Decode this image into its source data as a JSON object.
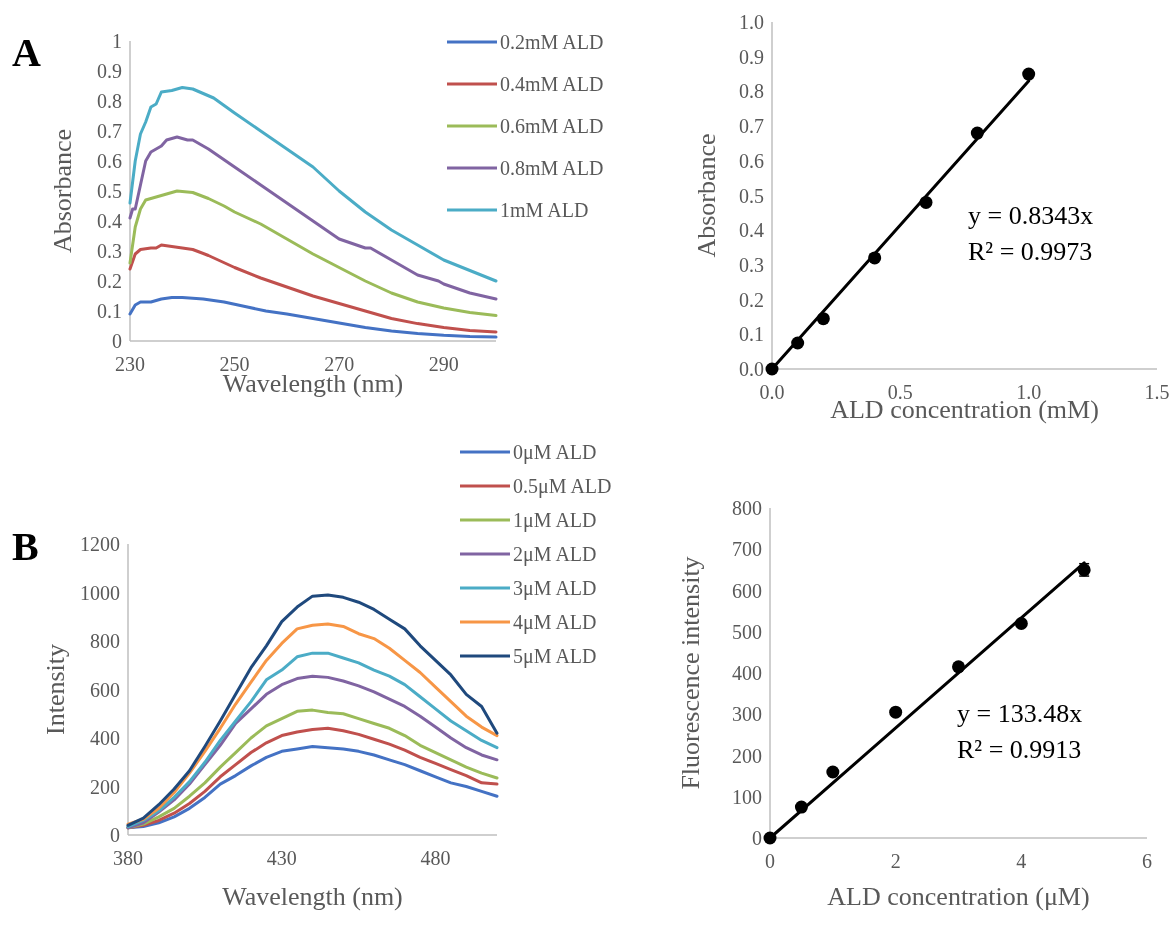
{
  "chart_data": [
    {
      "type": "line",
      "title": "A",
      "xlabel": "Wavelength (nm)",
      "ylabel": "Absorbance",
      "xlim": [
        230,
        300
      ],
      "xticks": [
        230,
        250,
        270,
        290
      ],
      "ylim": [
        0,
        1
      ],
      "yticks": [
        0,
        0.1,
        0.2,
        0.3,
        0.4,
        0.5,
        0.6,
        0.7,
        0.8,
        0.9,
        1
      ],
      "legend": "top right",
      "series": [
        {
          "name": "0.2mM ALD",
          "color": "#4472c4",
          "x": [
            230,
            231,
            232,
            234,
            236,
            238,
            240,
            244,
            248,
            252,
            256,
            260,
            265,
            270,
            275,
            280,
            285,
            290,
            295,
            300
          ],
          "values": [
            0.09,
            0.12,
            0.13,
            0.13,
            0.14,
            0.145,
            0.145,
            0.14,
            0.13,
            0.115,
            0.1,
            0.09,
            0.075,
            0.06,
            0.045,
            0.033,
            0.025,
            0.019,
            0.015,
            0.013
          ]
        },
        {
          "name": "0.4mM ALD",
          "color": "#c0504d",
          "x": [
            230,
            231,
            232,
            234,
            235,
            236,
            238,
            240,
            242,
            245,
            250,
            255,
            260,
            265,
            270,
            275,
            280,
            285,
            290,
            295,
            300
          ],
          "values": [
            0.24,
            0.29,
            0.305,
            0.31,
            0.31,
            0.32,
            0.315,
            0.31,
            0.305,
            0.285,
            0.245,
            0.21,
            0.18,
            0.15,
            0.125,
            0.1,
            0.075,
            0.058,
            0.045,
            0.035,
            0.03
          ]
        },
        {
          "name": "0.6mM ALD",
          "color": "#9bbb59",
          "x": [
            230,
            231,
            232,
            233,
            235,
            237,
            239,
            242,
            245,
            248,
            250,
            255,
            260,
            265,
            270,
            275,
            280,
            285,
            290,
            295,
            300
          ],
          "values": [
            0.26,
            0.38,
            0.44,
            0.47,
            0.48,
            0.49,
            0.5,
            0.495,
            0.475,
            0.45,
            0.43,
            0.39,
            0.34,
            0.29,
            0.245,
            0.2,
            0.16,
            0.13,
            0.11,
            0.095,
            0.085
          ]
        },
        {
          "name": "0.8mM ALD",
          "color": "#8064a2",
          "x": [
            230,
            230.5,
            231,
            232,
            233,
            234,
            236,
            237,
            239,
            241,
            242,
            245,
            250,
            255,
            260,
            265,
            270,
            275,
            276,
            280,
            285,
            289,
            290,
            295,
            300
          ],
          "values": [
            0.41,
            0.44,
            0.44,
            0.52,
            0.6,
            0.63,
            0.65,
            0.67,
            0.68,
            0.67,
            0.67,
            0.64,
            0.58,
            0.52,
            0.46,
            0.4,
            0.34,
            0.31,
            0.31,
            0.27,
            0.22,
            0.2,
            0.19,
            0.16,
            0.14
          ]
        },
        {
          "name": "1mM ALD",
          "color": "#4bacc6",
          "x": [
            230,
            231,
            232,
            233,
            234,
            235,
            236,
            238,
            240,
            242,
            244,
            246,
            250,
            255,
            260,
            265,
            270,
            275,
            280,
            285,
            290,
            295,
            300
          ],
          "values": [
            0.46,
            0.6,
            0.69,
            0.73,
            0.78,
            0.79,
            0.83,
            0.835,
            0.845,
            0.84,
            0.825,
            0.81,
            0.76,
            0.7,
            0.64,
            0.58,
            0.5,
            0.43,
            0.37,
            0.32,
            0.27,
            0.235,
            0.2
          ]
        }
      ]
    },
    {
      "type": "scatter",
      "xlabel": "ALD concentration (mM)",
      "ylabel": "Absorbance",
      "xlim": [
        0,
        1.5
      ],
      "xticks": [
        {
          "value": 0,
          "label": "0.0"
        },
        0.5,
        {
          "value": 1,
          "label": "1.0"
        },
        1.5
      ],
      "ylim": [
        0,
        1
      ],
      "yticks": [
        {
          "value": 0,
          "label": "0.0"
        },
        0.1,
        0.2,
        0.3,
        0.4,
        0.5,
        0.6,
        0.7,
        0.8,
        0.9,
        {
          "value": 1,
          "label": "1.0"
        }
      ],
      "annotations": [
        "y = 0.8343x",
        "R² = 0.9973"
      ],
      "series": [
        {
          "color": "#000000",
          "marker": "circle",
          "x": [
            0,
            0.1,
            0.2,
            0.4,
            0.6,
            0.8,
            1.0
          ],
          "values": [
            0,
            0.075,
            0.145,
            0.32,
            0.48,
            0.68,
            0.85
          ]
        },
        {
          "type": "line",
          "color": "#000000",
          "x": [
            0,
            1
          ],
          "values": [
            0,
            0.83
          ]
        }
      ]
    },
    {
      "type": "line",
      "title": "B",
      "xlabel": "Wavelength (nm)",
      "ylabel": "Intensity",
      "xlim": [
        380,
        500
      ],
      "xticks": [
        380,
        430,
        480
      ],
      "ylim": [
        0,
        1200
      ],
      "yticks": [
        0,
        200,
        400,
        600,
        800,
        1000,
        1200
      ],
      "legend": "right",
      "x": [
        380,
        385,
        390,
        395,
        400,
        405,
        410,
        415,
        420,
        425,
        430,
        435,
        440,
        445,
        450,
        455,
        460,
        465,
        470,
        475,
        480,
        485,
        490,
        495,
        500
      ],
      "series": [
        {
          "name": "0μM ALD",
          "color": "#4472c4",
          "values": [
            30,
            35,
            50,
            75,
            110,
            155,
            210,
            245,
            285,
            320,
            345,
            355,
            365,
            360,
            355,
            345,
            330,
            310,
            290,
            265,
            240,
            215,
            200,
            180,
            160
          ]
        },
        {
          "name": "0.5μM ALD",
          "color": "#c0504d",
          "values": [
            30,
            40,
            60,
            90,
            130,
            180,
            240,
            290,
            340,
            380,
            410,
            425,
            435,
            440,
            430,
            415,
            395,
            375,
            350,
            320,
            295,
            270,
            245,
            215,
            210
          ]
        },
        {
          "name": "1μM ALD",
          "color": "#9bbb59",
          "values": [
            30,
            45,
            75,
            110,
            160,
            215,
            280,
            340,
            400,
            450,
            480,
            510,
            515,
            505,
            500,
            480,
            460,
            440,
            410,
            370,
            340,
            310,
            280,
            255,
            235
          ]
        },
        {
          "name": "2μM ALD",
          "color": "#8064a2",
          "values": [
            30,
            50,
            95,
            145,
            210,
            290,
            370,
            460,
            520,
            580,
            620,
            645,
            655,
            650,
            635,
            615,
            590,
            560,
            530,
            490,
            445,
            400,
            360,
            330,
            310
          ]
        },
        {
          "name": "3μM ALD",
          "color": "#4bacc6",
          "values": [
            35,
            60,
            100,
            155,
            220,
            300,
            390,
            470,
            550,
            640,
            680,
            735,
            750,
            750,
            730,
            710,
            680,
            655,
            620,
            570,
            520,
            470,
            430,
            390,
            360
          ]
        },
        {
          "name": "4μM ALD",
          "color": "#f79646",
          "values": [
            45,
            65,
            110,
            175,
            255,
            345,
            440,
            540,
            630,
            720,
            790,
            850,
            865,
            870,
            860,
            830,
            810,
            770,
            720,
            670,
            610,
            550,
            490,
            445,
            410
          ]
        },
        {
          "name": "5μM ALD",
          "color": "#1f497d",
          "values": [
            40,
            70,
            125,
            190,
            265,
            365,
            470,
            580,
            690,
            780,
            880,
            940,
            985,
            990,
            980,
            960,
            930,
            890,
            850,
            780,
            720,
            660,
            580,
            530,
            420
          ]
        }
      ]
    },
    {
      "type": "scatter",
      "xlabel": "ALD concentration (μM)",
      "ylabel": "Fluorescence intensity",
      "xlim": [
        0,
        6
      ],
      "xticks": [
        0,
        2,
        4,
        6
      ],
      "ylim": [
        0,
        800
      ],
      "yticks": [
        0,
        100,
        200,
        300,
        400,
        500,
        600,
        700,
        800
      ],
      "annotations": [
        "y = 133.48x",
        "R² = 0.9913"
      ],
      "series": [
        {
          "color": "#000000",
          "marker": "circle",
          "x": [
            0,
            0.5,
            1,
            2,
            3,
            4,
            5
          ],
          "values": [
            0,
            75,
            160,
            305,
            415,
            520,
            650
          ],
          "errors": [
            null,
            null,
            null,
            null,
            null,
            null,
            15
          ]
        },
        {
          "type": "line",
          "color": "#000000",
          "x": [
            0,
            5
          ],
          "values": [
            0,
            667
          ]
        }
      ]
    }
  ]
}
